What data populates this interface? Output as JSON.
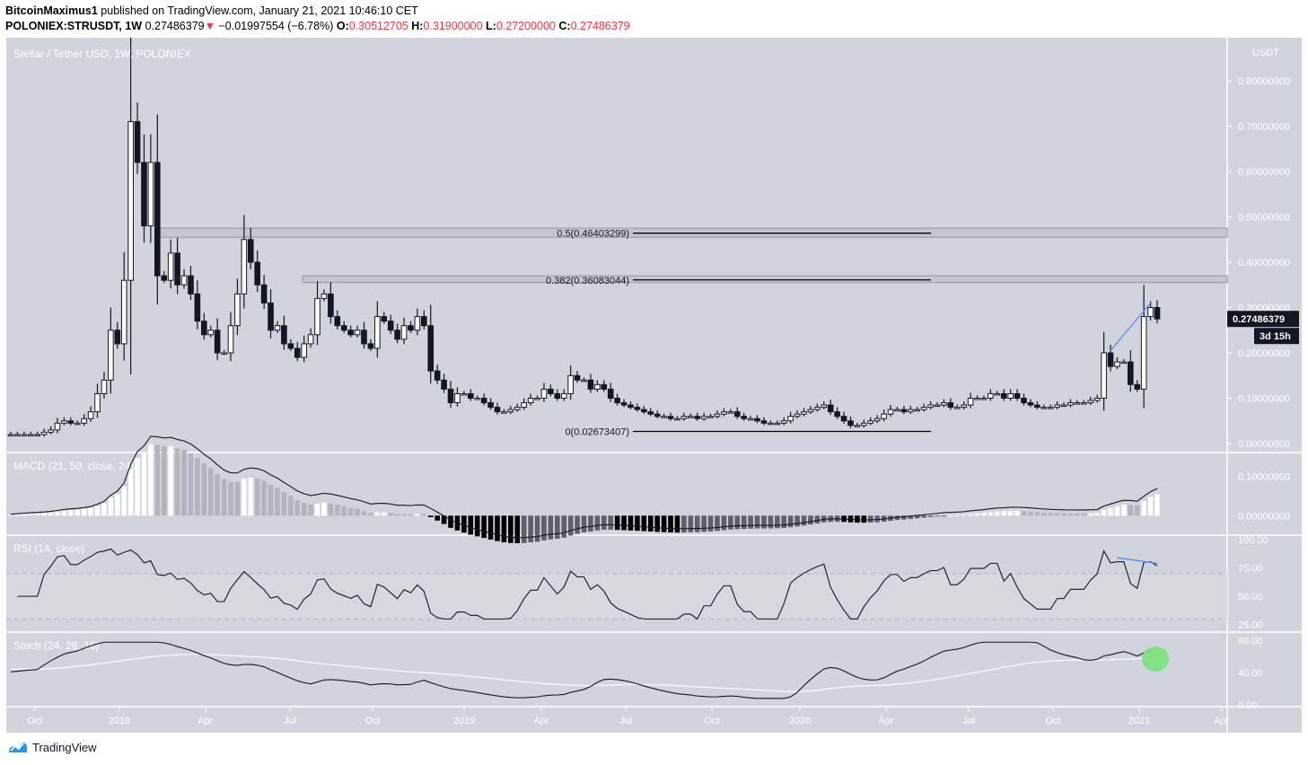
{
  "header": {
    "author": "BitcoinMaximus1",
    "published_text": " published on TradingView.com, January 21, 2021 10:46:10 CET",
    "symbol": "POLONIEX:STRUSDT, 1W",
    "last_price": "0.27486379",
    "change_arrow": "▼",
    "change": "−0.01997554 (−6.78%)",
    "o_label": "O:",
    "o_value": "0.30512705",
    "h_label": "H:",
    "h_value": "0.31900000",
    "l_label": "L:",
    "l_value": "0.27200000",
    "c_label": "C:",
    "c_value": "0.27486379"
  },
  "chart": {
    "title": "Stellar / Tether USD, 1W, POLONIEX",
    "currency": "USDT",
    "price_label": "0.27486379",
    "countdown": "3d 15h",
    "colors": {
      "bg": "#d1d4dc",
      "up": "#ffffff",
      "down": "#131722",
      "trendline": "#5b8def",
      "highlight": "#7ee07e",
      "zone": "#c3c6ce"
    }
  },
  "footer": {
    "brand": "TradingView"
  },
  "chart_data": [
    {
      "type": "candlestick",
      "title": "Stellar / Tether USD, 1W, POLONIEX",
      "ylabel": "USDT",
      "ylim": [
        -0.02,
        0.88
      ],
      "yticks": [
        "0.80000000",
        "0.70000000",
        "0.60000000",
        "0.50000000",
        "0.40000000",
        "0.30000000",
        "0.20000000",
        "0.10000000",
        "0.00000000"
      ],
      "xticks": [
        "Oct",
        "2018",
        "Apr",
        "Jul",
        "Oct",
        "2019",
        "Apr",
        "Jul",
        "Oct",
        "2020",
        "Apr",
        "Jul",
        "Oct",
        "2021",
        "Apr"
      ],
      "current_price": 0.27486379,
      "fib_levels": [
        {
          "label": "0.5(0.46403299)",
          "value": 0.46403299
        },
        {
          "label": "0.382(0.36083044)",
          "value": 0.36083044
        },
        {
          "label": "0(0.02673407)",
          "value": 0.02673407
        }
      ],
      "resistance_zones": [
        [
          0.455,
          0.475
        ],
        [
          0.355,
          0.37
        ]
      ],
      "closes": [
        0.02,
        0.02,
        0.02,
        0.02,
        0.02,
        0.025,
        0.03,
        0.045,
        0.05,
        0.045,
        0.045,
        0.055,
        0.07,
        0.11,
        0.14,
        0.25,
        0.22,
        0.36,
        0.71,
        0.62,
        0.48,
        0.62,
        0.37,
        0.36,
        0.42,
        0.35,
        0.37,
        0.33,
        0.27,
        0.24,
        0.25,
        0.2,
        0.2,
        0.26,
        0.33,
        0.45,
        0.4,
        0.35,
        0.31,
        0.25,
        0.26,
        0.22,
        0.21,
        0.19,
        0.22,
        0.24,
        0.32,
        0.33,
        0.28,
        0.26,
        0.25,
        0.24,
        0.25,
        0.22,
        0.21,
        0.28,
        0.27,
        0.25,
        0.23,
        0.26,
        0.25,
        0.28,
        0.26,
        0.16,
        0.14,
        0.12,
        0.09,
        0.11,
        0.11,
        0.1,
        0.1,
        0.09,
        0.08,
        0.07,
        0.07,
        0.075,
        0.08,
        0.09,
        0.1,
        0.1,
        0.12,
        0.11,
        0.1,
        0.11,
        0.15,
        0.14,
        0.14,
        0.12,
        0.13,
        0.12,
        0.1,
        0.09,
        0.085,
        0.08,
        0.075,
        0.07,
        0.065,
        0.06,
        0.06,
        0.055,
        0.055,
        0.06,
        0.06,
        0.055,
        0.06,
        0.06,
        0.065,
        0.07,
        0.07,
        0.06,
        0.055,
        0.055,
        0.05,
        0.045,
        0.045,
        0.045,
        0.05,
        0.06,
        0.065,
        0.07,
        0.075,
        0.08,
        0.085,
        0.07,
        0.06,
        0.05,
        0.04,
        0.04,
        0.045,
        0.05,
        0.055,
        0.065,
        0.075,
        0.075,
        0.07,
        0.075,
        0.075,
        0.08,
        0.085,
        0.085,
        0.09,
        0.08,
        0.08,
        0.085,
        0.1,
        0.1,
        0.1,
        0.11,
        0.11,
        0.1,
        0.11,
        0.1,
        0.09,
        0.085,
        0.08,
        0.08,
        0.08,
        0.085,
        0.085,
        0.09,
        0.09,
        0.09,
        0.095,
        0.1,
        0.2,
        0.17,
        0.18,
        0.18,
        0.13,
        0.12,
        0.28,
        0.3,
        0.27486379
      ],
      "macd": {
        "title": "MACD (21, 50, close, 24)",
        "yticks": [
          "0.10000000",
          "0.00000000"
        ],
        "ylim": [
          -0.045,
          0.14
        ]
      },
      "rsi": {
        "title": "RSI (14, close)",
        "yticks": [
          "100.00",
          "75.00",
          "50.00",
          "25.00"
        ],
        "bands": [
          70,
          30
        ],
        "ylim": [
          20,
          100
        ]
      },
      "stoch": {
        "title": "Stoch (24, 28, 16)",
        "yticks": [
          "80.00",
          "40.00",
          "0.00"
        ],
        "ylim": [
          0,
          85
        ]
      }
    }
  ]
}
